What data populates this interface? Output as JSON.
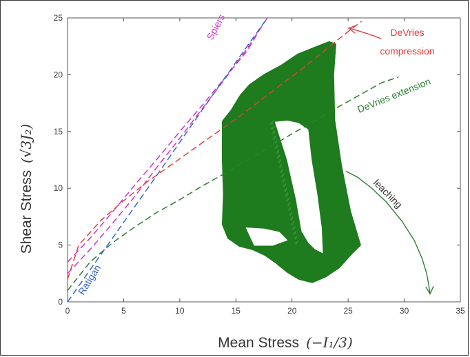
{
  "chart_data": {
    "type": "line",
    "xlabel": "Mean Stress",
    "xlabel_math": "(−I₁/3)",
    "ylabel": "Shear Stress",
    "ylabel_math": "(√3J₂)",
    "xlim": [
      0,
      35
    ],
    "ylim": [
      0,
      25
    ],
    "x_ticks": [
      0,
      5,
      10,
      15,
      20,
      25,
      30,
      35
    ],
    "y_ticks": [
      0,
      5,
      10,
      15,
      20,
      25
    ],
    "grid": false,
    "series": [
      {
        "name": "Spiers",
        "color": "#cc33cc",
        "style": "dashed",
        "x": [
          0,
          2,
          4,
          6,
          8,
          10,
          12,
          14,
          16,
          17.5
        ],
        "y": [
          3.5,
          5.6,
          7.9,
          10.3,
          12.6,
          15.0,
          17.3,
          19.7,
          22.1,
          24.6
        ]
      },
      {
        "name": "Spiers",
        "color": "#cc33cc",
        "style": "dashed",
        "x": [
          0,
          2,
          4,
          6,
          8,
          10,
          12,
          14,
          16,
          17.8
        ],
        "y": [
          2.5,
          4.6,
          6.9,
          9.3,
          11.9,
          14.4,
          17.0,
          19.6,
          22.3,
          25.0
        ]
      },
      {
        "name": "Ratigan",
        "color": "#3366cc",
        "style": "dashed",
        "x": [
          0,
          4,
          8,
          12,
          16,
          17.8
        ],
        "y": [
          0,
          5.6,
          11.2,
          16.9,
          22.5,
          25.0
        ]
      },
      {
        "name": "DeVries compression",
        "color": "#e04040",
        "style": "dashed",
        "x": [
          0,
          1,
          3,
          5,
          7,
          9,
          11,
          13,
          15,
          17,
          19,
          21,
          23,
          25,
          26.2
        ],
        "y": [
          2.0,
          5.0,
          7.2,
          8.9,
          10.5,
          11.9,
          13.3,
          14.7,
          16.1,
          17.6,
          19.1,
          20.6,
          22.2,
          23.8,
          24.7
        ]
      },
      {
        "name": "DeVries extension",
        "color": "#2e7d32",
        "style": "dashed",
        "x": [
          0,
          2,
          4,
          6,
          8,
          10,
          12,
          14,
          16,
          18,
          20,
          22,
          24,
          26,
          28,
          29.5
        ],
        "y": [
          1.0,
          3.5,
          5.2,
          6.6,
          7.9,
          9.0,
          10.2,
          11.3,
          12.5,
          13.6,
          14.8,
          15.9,
          17.1,
          18.2,
          19.3,
          19.8
        ]
      },
      {
        "name": "leaching",
        "color": "#2e7d32",
        "style": "solid",
        "x": [
          24.8,
          25.8,
          27,
          28.4,
          29.8,
          30.9,
          31.6,
          32.0,
          32.2,
          32.3
        ],
        "y": [
          11.5,
          11.0,
          10.1,
          8.8,
          7.1,
          5.4,
          3.8,
          2.5,
          1.4,
          0.7
        ]
      }
    ],
    "annotations": [
      {
        "text": "Spiers",
        "color": "#cc33cc"
      },
      {
        "text": "Ratigan",
        "color": "#3366cc"
      },
      {
        "text": "DeVries",
        "color": "#e04040"
      },
      {
        "text": "compression",
        "color": "#e04040"
      },
      {
        "text": "DeVries extension",
        "color": "#2e7d32"
      },
      {
        "text": "leaching",
        "color": "#333333"
      }
    ],
    "region": {
      "name": "stress-path-envelope",
      "color": "#1e7b1e",
      "outer": [
        [
          13.8,
          15.9
        ],
        [
          14.6,
          16.9
        ],
        [
          15.4,
          18.2
        ],
        [
          16.2,
          19.1
        ],
        [
          17.5,
          20.0
        ],
        [
          19.0,
          20.8
        ],
        [
          20.5,
          21.8
        ],
        [
          22.0,
          22.4
        ],
        [
          23.3,
          22.9
        ],
        [
          23.9,
          22.7
        ],
        [
          23.7,
          20.0
        ],
        [
          23.8,
          16.0
        ],
        [
          24.4,
          12.0
        ],
        [
          25.2,
          8.0
        ],
        [
          26.1,
          5.0
        ],
        [
          25.3,
          4.2
        ],
        [
          24.2,
          3.0
        ],
        [
          23.0,
          2.2
        ],
        [
          21.8,
          1.7
        ],
        [
          20.6,
          2.0
        ],
        [
          19.6,
          2.6
        ],
        [
          18.6,
          3.4
        ],
        [
          17.6,
          4.1
        ],
        [
          16.5,
          4.6
        ],
        [
          15.3,
          4.9
        ],
        [
          14.3,
          5.6
        ],
        [
          13.8,
          6.8
        ],
        [
          13.9,
          9.5
        ],
        [
          13.8,
          12.5
        ],
        [
          13.8,
          15.0
        ]
      ],
      "hole": [
        [
          18.4,
          15.9
        ],
        [
          19.5,
          12.5
        ],
        [
          20.3,
          9.0
        ],
        [
          20.8,
          6.2
        ],
        [
          21.4,
          5.2
        ],
        [
          22.0,
          4.6
        ],
        [
          22.8,
          4.2
        ],
        [
          22.7,
          6.5
        ],
        [
          22.3,
          9.5
        ],
        [
          21.8,
          12.5
        ],
        [
          21.5,
          15.2
        ],
        [
          20.6,
          15.8
        ],
        [
          19.6,
          16.0
        ]
      ],
      "notch": [
        [
          15.8,
          6.6
        ],
        [
          17.5,
          6.5
        ],
        [
          18.9,
          6.2
        ],
        [
          19.7,
          5.4
        ],
        [
          18.3,
          4.9
        ],
        [
          16.6,
          4.9
        ]
      ]
    }
  }
}
